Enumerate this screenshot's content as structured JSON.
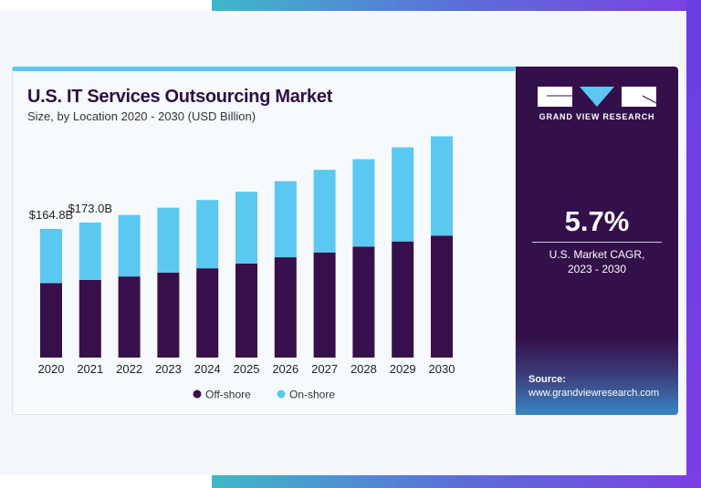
{
  "chart_data": {
    "type": "bar",
    "stacked": true,
    "title": "U.S. IT Services Outsourcing Market",
    "subtitle": "Size, by Location 2020 - 2030 (USD Billion)",
    "categories": [
      "2020",
      "2021",
      "2022",
      "2023",
      "2024",
      "2025",
      "2026",
      "2027",
      "2028",
      "2029",
      "2030"
    ],
    "series": [
      {
        "name": "Off-shore",
        "color": "#370f4a",
        "values": [
          95.5,
          99.5,
          103.9,
          108.9,
          114.4,
          120.6,
          128.5,
          134.7,
          142.2,
          148.8,
          156.3
        ]
      },
      {
        "name": "On-shore",
        "color": "#5bc8f2",
        "values": [
          69.3,
          73.5,
          78.8,
          83.2,
          87.5,
          91.9,
          97.5,
          105.9,
          112.0,
          120.6,
          127.2
        ]
      }
    ],
    "data_labels": [
      {
        "category": "2020",
        "text": "$164.8B"
      },
      {
        "category": "2021",
        "text": "$173.0B"
      }
    ],
    "ylim": [
      0,
      290
    ],
    "grid": false,
    "legend": "bottom"
  },
  "side_panel": {
    "brand": "GRAND VIEW RESEARCH",
    "cagr_value": "5.7%",
    "cagr_label_line1": "U.S. Market CAGR,",
    "cagr_label_line2": "2023 - 2030",
    "source_label": "Source:",
    "source_url": "www.grandviewresearch.com",
    "colors": {
      "panel": "#33104a",
      "accent": "#5bc8f2"
    }
  }
}
